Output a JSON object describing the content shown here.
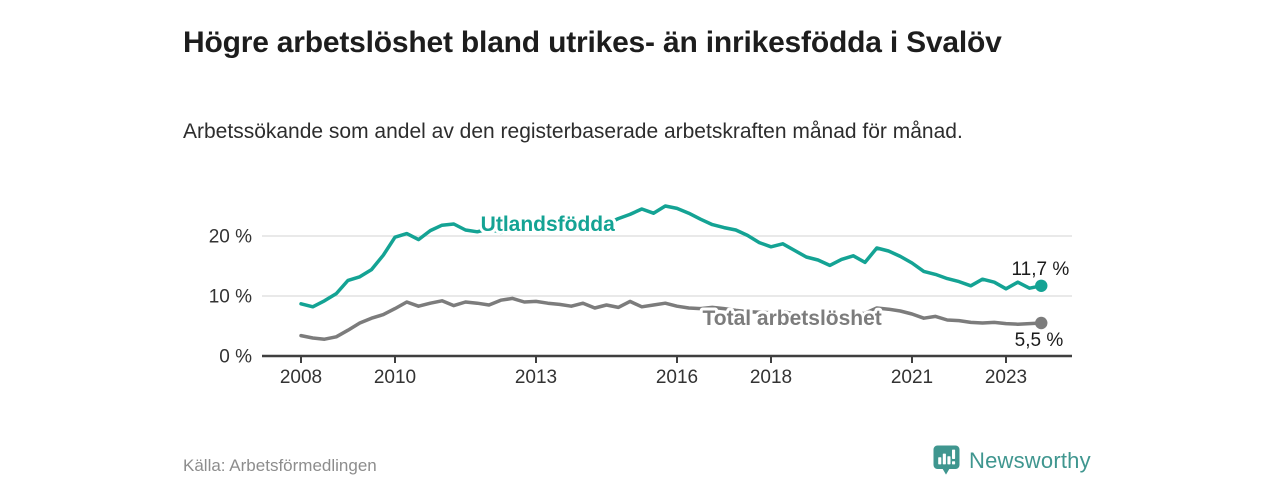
{
  "header": {
    "title": "Högre arbetslöshet bland utrikes- än inrikesfödda i Svalöv",
    "subtitle": "Arbetssökande som andel av den registerbaserade arbetskraften månad för månad."
  },
  "footer": {
    "source": "Källa: Arbetsförmedlingen",
    "brand": "Newsworthy",
    "brand_color": "#3f968f",
    "brand_icon": "bar-chart-speech-bubble-icon"
  },
  "chart_data": {
    "type": "line",
    "title": "",
    "xlabel": "",
    "ylabel": "",
    "grid": "horizontal-only",
    "x_start": 2008.0,
    "x_step": 0.25,
    "xlim": [
      2007.15,
      2024.4
    ],
    "ylim": [
      0,
      27
    ],
    "x_ticks": [
      {
        "value": 2008,
        "label": "2008"
      },
      {
        "value": 2010,
        "label": "2010"
      },
      {
        "value": 2013,
        "label": "2013"
      },
      {
        "value": 2016,
        "label": "2016"
      },
      {
        "value": 2018,
        "label": "2018"
      },
      {
        "value": 2021,
        "label": "2021"
      },
      {
        "value": 2023,
        "label": "2023"
      }
    ],
    "y_ticks": [
      {
        "value": 0,
        "label": "0 %"
      },
      {
        "value": 10,
        "label": "10 %"
      },
      {
        "value": 20,
        "label": "20 %"
      }
    ],
    "colors": {
      "grid": "#dcdcdc",
      "axis": "#3f3f3f",
      "tick_text": "#333333",
      "value_text": "#1b1b1b"
    },
    "series": [
      {
        "name": "Utlandsfödda",
        "color": "#14a394",
        "end_label": "11,7 %",
        "label_x": 2013.25,
        "label_y": 20.8,
        "values": [
          8.7,
          8.2,
          9.2,
          10.4,
          12.6,
          13.2,
          14.4,
          16.8,
          19.8,
          20.4,
          19.4,
          20.9,
          21.8,
          22.0,
          21.0,
          20.7,
          21.2,
          20.6,
          21.1,
          21.6,
          21.9,
          22.5,
          22.1,
          22.7,
          21.9,
          22.4,
          22.0,
          22.9,
          23.6,
          24.5,
          23.8,
          25.0,
          24.6,
          23.8,
          22.8,
          21.9,
          21.4,
          21.0,
          20.1,
          18.9,
          18.2,
          18.7,
          17.6,
          16.5,
          16.0,
          15.1,
          16.1,
          16.7,
          15.6,
          18.0,
          17.5,
          16.6,
          15.5,
          14.1,
          13.6,
          12.9,
          12.4,
          11.7,
          12.8,
          12.3,
          11.2,
          12.3,
          11.3,
          11.7
        ]
      },
      {
        "name": "Total arbetslöshet",
        "color": "#7c7c7c",
        "end_label": "5,5 %",
        "label_x": 2018.45,
        "label_y": 5.2,
        "values": [
          3.4,
          3.0,
          2.8,
          3.2,
          4.3,
          5.5,
          6.3,
          6.9,
          7.9,
          9.0,
          8.3,
          8.8,
          9.2,
          8.4,
          9.0,
          8.8,
          8.5,
          9.3,
          9.6,
          9.0,
          9.1,
          8.8,
          8.6,
          8.3,
          8.8,
          8.0,
          8.5,
          8.1,
          9.1,
          8.2,
          8.5,
          8.8,
          8.3,
          8.0,
          7.9,
          8.1,
          7.9,
          7.6,
          7.4,
          7.3,
          7.2,
          7.4,
          7.0,
          6.9,
          6.8,
          6.6,
          6.7,
          7.0,
          7.1,
          8.0,
          7.8,
          7.5,
          7.0,
          6.3,
          6.6,
          6.0,
          5.9,
          5.6,
          5.5,
          5.6,
          5.4,
          5.3,
          5.4,
          5.5
        ]
      }
    ]
  }
}
